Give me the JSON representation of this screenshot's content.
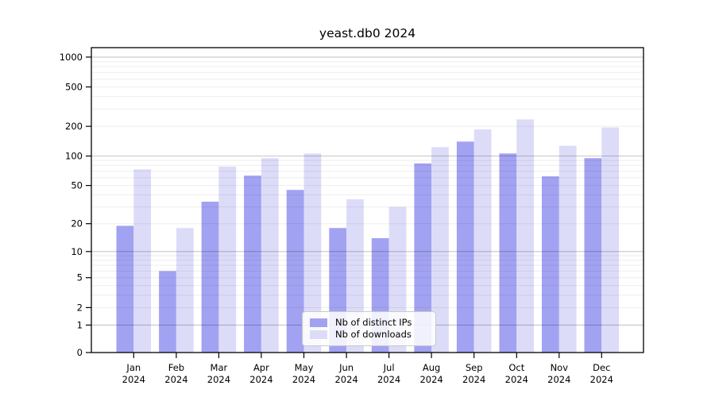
{
  "chart_data": {
    "type": "bar",
    "title": "yeast.db0 2024",
    "categories": [
      "Jan",
      "Feb",
      "Mar",
      "Apr",
      "May",
      "Jun",
      "Jul",
      "Aug",
      "Sep",
      "Oct",
      "Nov",
      "Dec"
    ],
    "category_year": "2024",
    "series": [
      {
        "name": "Nb of distinct IPs",
        "color": "#a2a2f2",
        "values": [
          19,
          6,
          34,
          63,
          45,
          18,
          14,
          84,
          140,
          106,
          62,
          95
        ]
      },
      {
        "name": "Nb of downloads",
        "color": "#dcdcf9",
        "values": [
          73,
          18,
          78,
          95,
          106,
          36,
          30,
          123,
          186,
          235,
          127,
          195
        ]
      }
    ],
    "y_ticks": [
      0,
      1,
      2,
      5,
      10,
      20,
      50,
      100,
      200,
      500,
      1000
    ],
    "y_major_gridlines": [
      1,
      10,
      100,
      1000
    ],
    "y_scale": "log10(value+1)",
    "ylim": [
      0,
      1250
    ],
    "grid": "horizontal major and minor, drawn over bars",
    "legend_position": "inside bottom center"
  },
  "colors": {
    "bar_distinct_ips": "#a2a2f2",
    "bar_downloads": "#dcdcf9",
    "grid_major_rgba": "rgba(0,0,0,0.22)",
    "grid_minor_rgba": "rgba(0,0,0,0.07)",
    "axis": "#000000",
    "legend_border": "#c9c9c9",
    "background": "#ffffff"
  }
}
